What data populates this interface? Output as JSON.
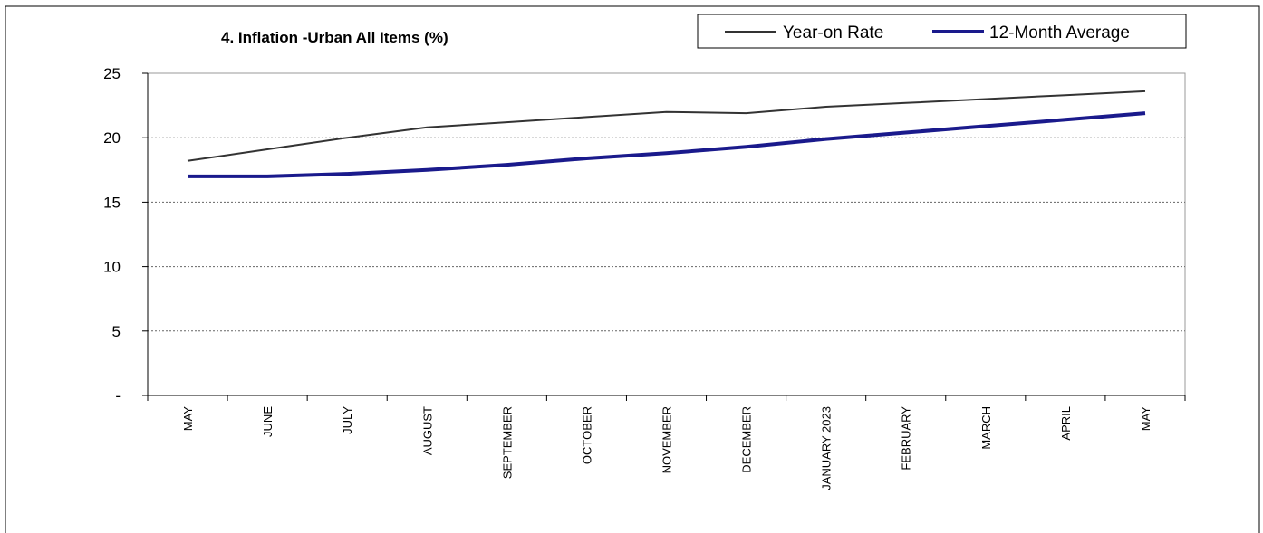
{
  "chart_data": {
    "type": "line",
    "title": "4. Inflation  -Urban All  Items (%)",
    "categories": [
      "MAY",
      "JUNE",
      "JULY",
      "AUGUST",
      "SEPTEMBER",
      "OCTOBER",
      "NOVEMBER",
      "DECEMBER",
      "JANUARY 2023",
      "FEBRUARY",
      "MARCH",
      "APRIL",
      "MAY"
    ],
    "series": [
      {
        "name": "Year-on Rate",
        "values": [
          18.2,
          19.1,
          20.0,
          20.8,
          21.2,
          21.6,
          22.0,
          21.9,
          22.4,
          22.7,
          23.0,
          23.3,
          23.6
        ],
        "color": "#333333"
      },
      {
        "name": "12-Month Average",
        "values": [
          17.0,
          17.0,
          17.2,
          17.5,
          17.9,
          18.4,
          18.8,
          19.3,
          19.9,
          20.4,
          20.9,
          21.4,
          21.9
        ],
        "color": "#1a1a8c"
      }
    ],
    "y_ticks": [
      "-",
      "5",
      "10",
      "15",
      "20",
      "25"
    ],
    "ylim": [
      0,
      25
    ],
    "grid": true,
    "legend_position": "top-right"
  }
}
